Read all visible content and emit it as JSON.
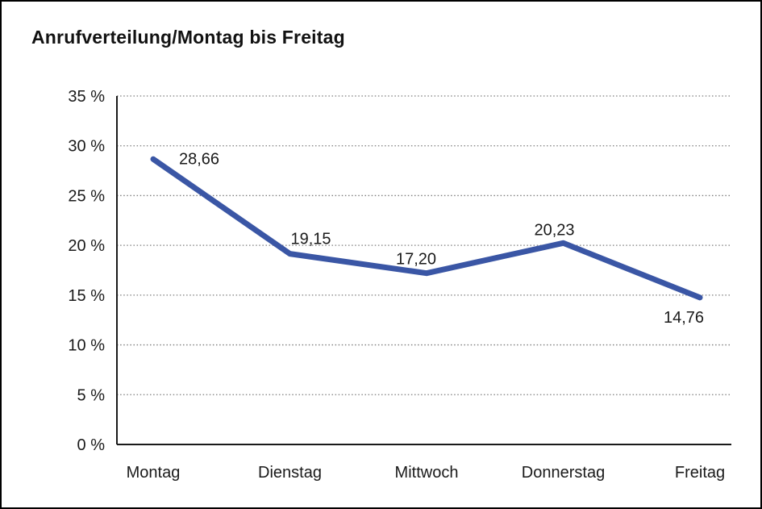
{
  "window": {
    "background": "#ffffff",
    "border_color": "#000000"
  },
  "chart_data": {
    "type": "line",
    "title": "Anrufverteilung/Montag bis Freitag",
    "categories": [
      "Montag",
      "Dienstag",
      "Mittwoch",
      "Donnerstag",
      "Freitag"
    ],
    "values": [
      28.66,
      19.15,
      17.2,
      20.23,
      14.76
    ],
    "value_labels": [
      "28,66",
      "19,15",
      "17,20",
      "20,23",
      "14,76"
    ],
    "xlabel": "",
    "ylabel": "",
    "ylim": [
      0,
      35
    ],
    "ytick_step": 5,
    "ytick_labels": [
      "0 %",
      "5 %",
      "10 %",
      "15 %",
      "20 %",
      "25 %",
      "30 %",
      "35 %"
    ],
    "grid": "horizontal dotted gridlines at each y tick",
    "legend_position": "none",
    "line_color": "#3A56A5",
    "axis_color": "#1A1A1A",
    "grid_color": "#7C7C7C",
    "text_color": "#1A1A1A"
  }
}
